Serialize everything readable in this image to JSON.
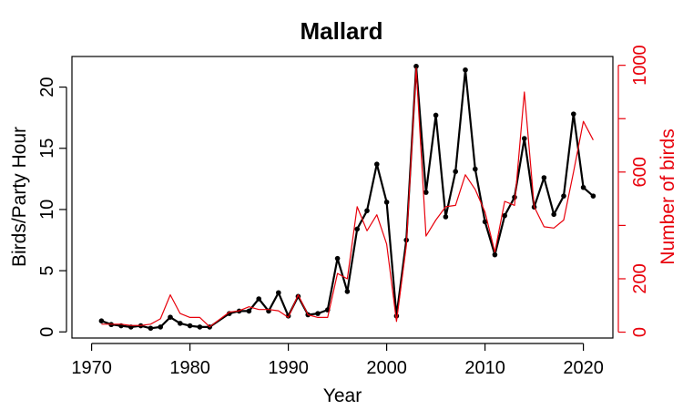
{
  "chart_data": {
    "type": "line",
    "title": "Mallard",
    "xlabel": "Year",
    "ylabel": "Birds/Party Hour",
    "y2label": "Number of birds",
    "xlim": [
      1968,
      2023
    ],
    "ylim": [
      -0.5,
      22.5
    ],
    "y2lim": [
      -22,
      1033
    ],
    "x_ticks": [
      1970,
      1980,
      1990,
      2000,
      2010,
      2020
    ],
    "y_ticks": [
      0,
      5,
      10,
      15,
      20
    ],
    "y2_ticks": [
      0,
      200,
      400,
      600,
      800,
      1000
    ],
    "y2_tick_labels": [
      "0",
      "200",
      "",
      "600",
      "",
      "1000"
    ],
    "grid": false,
    "colors": {
      "primary": "#000000",
      "secondary": "#e8000b"
    },
    "series": [
      {
        "name": "Birds/Party Hour",
        "axis": "left",
        "x": [
          1971,
          1972,
          1973,
          1974,
          1975,
          1976,
          1977,
          1978,
          1979,
          1980,
          1981,
          1982,
          1984,
          1985,
          1986,
          1987,
          1988,
          1989,
          1990,
          1991,
          1992,
          1993,
          1994,
          1995,
          1996,
          1997,
          1998,
          1999,
          2000,
          2001,
          2002,
          2003,
          2004,
          2005,
          2006,
          2007,
          2008,
          2009,
          2010,
          2011,
          2012,
          2013,
          2014,
          2015,
          2016,
          2017,
          2018,
          2019,
          2020,
          2021
        ],
        "y": [
          0.9,
          0.6,
          0.5,
          0.4,
          0.5,
          0.3,
          0.4,
          1.2,
          0.7,
          0.5,
          0.4,
          0.4,
          1.5,
          1.7,
          1.7,
          2.7,
          1.7,
          3.2,
          1.3,
          2.9,
          1.4,
          1.5,
          1.8,
          6.0,
          3.3,
          8.4,
          9.9,
          13.7,
          10.6,
          1.3,
          7.5,
          21.7,
          11.4,
          17.7,
          9.4,
          13.1,
          21.4,
          13.3,
          9.0,
          6.3,
          9.5,
          11.0,
          15.8,
          10.2,
          12.6,
          9.6,
          11.1,
          17.8,
          11.8,
          11.1
        ]
      },
      {
        "name": "Number of birds",
        "axis": "right",
        "x": [
          1971,
          1972,
          1973,
          1974,
          1975,
          1976,
          1977,
          1978,
          1979,
          1980,
          1981,
          1982,
          1984,
          1985,
          1986,
          1987,
          1988,
          1989,
          1990,
          1991,
          1992,
          1993,
          1994,
          1995,
          1996,
          1997,
          1998,
          1999,
          2000,
          2001,
          2002,
          2003,
          2004,
          2005,
          2006,
          2007,
          2008,
          2009,
          2010,
          2011,
          2012,
          2013,
          2014,
          2015,
          2016,
          2017,
          2018,
          2019,
          2020,
          2021
        ],
        "y": [
          30,
          30,
          30,
          25,
          25,
          30,
          50,
          140,
          70,
          55,
          55,
          20,
          75,
          80,
          95,
          85,
          85,
          80,
          55,
          140,
          65,
          55,
          55,
          220,
          200,
          470,
          380,
          440,
          330,
          40,
          325,
          990,
          360,
          420,
          470,
          475,
          590,
          535,
          450,
          300,
          490,
          475,
          900,
          470,
          395,
          390,
          420,
          600,
          790,
          720
        ]
      }
    ]
  }
}
